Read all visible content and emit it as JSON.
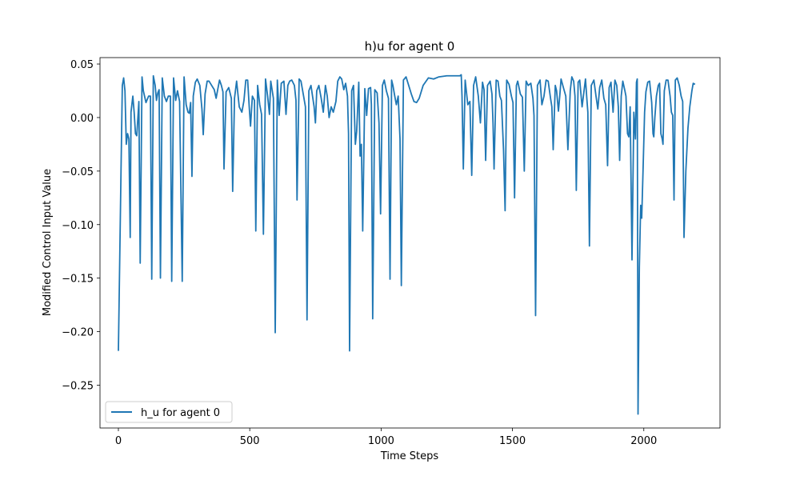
{
  "chart_data": {
    "type": "line",
    "title": "h)u for agent 0",
    "xlabel": "Time Steps",
    "ylabel": "Modified Control Input Value",
    "xlim": [
      -70,
      2290
    ],
    "ylim": [
      -0.29,
      0.056
    ],
    "xticks": [
      0,
      500,
      1000,
      1500,
      2000
    ],
    "yticks": [
      0.05,
      0.0,
      -0.05,
      -0.1,
      -0.15,
      -0.2,
      -0.25
    ],
    "ytick_labels": [
      "0.05",
      "0.00",
      "−0.05",
      "−0.10",
      "−0.15",
      "−0.20",
      "−0.25"
    ],
    "xtick_labels": [
      "0",
      "500",
      "1000",
      "1500",
      "2000"
    ],
    "grid": false,
    "legend_position": "lower-left",
    "series": [
      {
        "name": "h_u for agent 0",
        "color": "#1f77b4",
        "points": [
          [
            0,
            -0.218
          ],
          [
            10,
            -0.05
          ],
          [
            15,
            0.03
          ],
          [
            20,
            0.037
          ],
          [
            25,
            0.025
          ],
          [
            30,
            -0.025
          ],
          [
            35,
            -0.015
          ],
          [
            40,
            -0.02
          ],
          [
            45,
            -0.112
          ],
          [
            48,
            0.005
          ],
          [
            55,
            0.02
          ],
          [
            60,
            0.005
          ],
          [
            65,
            -0.015
          ],
          [
            70,
            -0.017
          ],
          [
            78,
            0.015
          ],
          [
            83,
            -0.136
          ],
          [
            90,
            0.038
          ],
          [
            95,
            0.025
          ],
          [
            105,
            0.014
          ],
          [
            115,
            0.02
          ],
          [
            122,
            0.02
          ],
          [
            127,
            -0.151
          ],
          [
            133,
            0.039
          ],
          [
            140,
            0.03
          ],
          [
            145,
            0.016
          ],
          [
            150,
            0.023
          ],
          [
            155,
            0.026
          ],
          [
            160,
            -0.15
          ],
          [
            167,
            0.037
          ],
          [
            175,
            0.02
          ],
          [
            183,
            0.015
          ],
          [
            190,
            0.02
          ],
          [
            198,
            0.02
          ],
          [
            203,
            -0.153
          ],
          [
            210,
            0.037
          ],
          [
            218,
            0.016
          ],
          [
            225,
            0.025
          ],
          [
            233,
            0.015
          ],
          [
            243,
            -0.153
          ],
          [
            250,
            0.038
          ],
          [
            258,
            0.012
          ],
          [
            265,
            0.005
          ],
          [
            270,
            0.004
          ],
          [
            275,
            0.014
          ],
          [
            280,
            -0.055
          ],
          [
            285,
            0.02
          ],
          [
            293,
            0.033
          ],
          [
            300,
            0.036
          ],
          [
            310,
            0.03
          ],
          [
            318,
            0.008
          ],
          [
            323,
            -0.016
          ],
          [
            330,
            0.022
          ],
          [
            338,
            0.034
          ],
          [
            345,
            0.034
          ],
          [
            355,
            0.03
          ],
          [
            365,
            0.026
          ],
          [
            372,
            0.018
          ],
          [
            378,
            0.026
          ],
          [
            385,
            0.035
          ],
          [
            392,
            0.03
          ],
          [
            398,
            0.024
          ],
          [
            402,
            -0.048
          ],
          [
            410,
            0.024
          ],
          [
            420,
            0.028
          ],
          [
            430,
            0.018
          ],
          [
            435,
            -0.069
          ],
          [
            442,
            0.018
          ],
          [
            450,
            0.034
          ],
          [
            460,
            0.01
          ],
          [
            470,
            0.005
          ],
          [
            478,
            0.016
          ],
          [
            485,
            0.035
          ],
          [
            492,
            0.035
          ],
          [
            498,
            0.01
          ],
          [
            503,
            -0.008
          ],
          [
            510,
            0.02
          ],
          [
            518,
            0.016
          ],
          [
            523,
            -0.106
          ],
          [
            530,
            0.03
          ],
          [
            538,
            0.012
          ],
          [
            545,
            0.003
          ],
          [
            552,
            -0.109
          ],
          [
            560,
            0.036
          ],
          [
            568,
            0.02
          ],
          [
            575,
            0.003
          ],
          [
            580,
            0.034
          ],
          [
            590,
            0.018
          ],
          [
            597,
            -0.201
          ],
          [
            605,
            0.035
          ],
          [
            612,
            0.002
          ],
          [
            620,
            0.032
          ],
          [
            630,
            0.034
          ],
          [
            638,
            0.003
          ],
          [
            645,
            0.03
          ],
          [
            652,
            0.034
          ],
          [
            660,
            0.035
          ],
          [
            670,
            0.03
          ],
          [
            676,
            0.016
          ],
          [
            680,
            -0.077
          ],
          [
            688,
            0.036
          ],
          [
            695,
            0.034
          ],
          [
            705,
            0.02
          ],
          [
            712,
            0.01
          ],
          [
            718,
            -0.189
          ],
          [
            725,
            0.025
          ],
          [
            733,
            0.03
          ],
          [
            745,
            0.01
          ],
          [
            750,
            -0.005
          ],
          [
            755,
            0.025
          ],
          [
            763,
            0.03
          ],
          [
            772,
            0.018
          ],
          [
            780,
            0.005
          ],
          [
            788,
            0.03
          ],
          [
            795,
            0.02
          ],
          [
            802,
            0.0
          ],
          [
            810,
            0.01
          ],
          [
            818,
            0.005
          ],
          [
            828,
            0.015
          ],
          [
            835,
            0.034
          ],
          [
            843,
            0.038
          ],
          [
            850,
            0.036
          ],
          [
            858,
            0.026
          ],
          [
            865,
            0.032
          ],
          [
            872,
            0.02
          ],
          [
            876,
            -0.015
          ],
          [
            880,
            -0.218
          ],
          [
            888,
            0.025
          ],
          [
            895,
            0.03
          ],
          [
            902,
            -0.025
          ],
          [
            907,
            -0.013
          ],
          [
            915,
            0.033
          ],
          [
            920,
            -0.036
          ],
          [
            925,
            -0.025
          ],
          [
            930,
            -0.106
          ],
          [
            938,
            0.027
          ],
          [
            945,
            0.002
          ],
          [
            952,
            0.027
          ],
          [
            960,
            0.028
          ],
          [
            963,
            0.012
          ],
          [
            968,
            -0.188
          ],
          [
            976,
            0.026
          ],
          [
            985,
            0.023
          ],
          [
            992,
            -0.005
          ],
          [
            998,
            -0.09
          ],
          [
            1005,
            0.03
          ],
          [
            1012,
            0.035
          ],
          [
            1020,
            0.025
          ],
          [
            1028,
            0.018
          ],
          [
            1034,
            -0.151
          ],
          [
            1040,
            0.035
          ],
          [
            1045,
            0.03
          ],
          [
            1052,
            0.02
          ],
          [
            1058,
            0.012
          ],
          [
            1065,
            0.02
          ],
          [
            1072,
            -0.02
          ],
          [
            1077,
            -0.157
          ],
          [
            1085,
            0.035
          ],
          [
            1095,
            0.038
          ],
          [
            1105,
            0.03
          ],
          [
            1115,
            0.022
          ],
          [
            1125,
            0.015
          ],
          [
            1135,
            0.014
          ],
          [
            1145,
            0.018
          ],
          [
            1160,
            0.03
          ],
          [
            1180,
            0.037
          ],
          [
            1200,
            0.036
          ],
          [
            1220,
            0.038
          ],
          [
            1250,
            0.039
          ],
          [
            1280,
            0.039
          ],
          [
            1300,
            0.039
          ],
          [
            1305,
            0.04
          ],
          [
            1308,
            0.02
          ],
          [
            1313,
            -0.048
          ],
          [
            1320,
            0.035
          ],
          [
            1330,
            0.012
          ],
          [
            1338,
            0.015
          ],
          [
            1345,
            -0.054
          ],
          [
            1352,
            0.03
          ],
          [
            1360,
            0.038
          ],
          [
            1370,
            0.02
          ],
          [
            1378,
            -0.005
          ],
          [
            1386,
            0.033
          ],
          [
            1392,
            0.026
          ],
          [
            1398,
            -0.04
          ],
          [
            1405,
            0.03
          ],
          [
            1415,
            0.034
          ],
          [
            1422,
            0.022
          ],
          [
            1426,
            -0.005
          ],
          [
            1430,
            -0.048
          ],
          [
            1438,
            0.035
          ],
          [
            1445,
            0.034
          ],
          [
            1452,
            0.02
          ],
          [
            1458,
            0.016
          ],
          [
            1466,
            -0.03
          ],
          [
            1472,
            -0.087
          ],
          [
            1478,
            0.035
          ],
          [
            1487,
            0.031
          ],
          [
            1496,
            0.02
          ],
          [
            1502,
            0.014
          ],
          [
            1508,
            -0.075
          ],
          [
            1515,
            0.03
          ],
          [
            1520,
            0.034
          ],
          [
            1530,
            0.022
          ],
          [
            1538,
            0.019
          ],
          [
            1545,
            -0.05
          ],
          [
            1552,
            0.034
          ],
          [
            1560,
            0.03
          ],
          [
            1570,
            0.032
          ],
          [
            1578,
            0.018
          ],
          [
            1582,
            0.002
          ],
          [
            1588,
            -0.185
          ],
          [
            1595,
            0.03
          ],
          [
            1605,
            0.035
          ],
          [
            1612,
            0.012
          ],
          [
            1620,
            0.02
          ],
          [
            1628,
            0.035
          ],
          [
            1636,
            0.034
          ],
          [
            1645,
            0.018
          ],
          [
            1650,
            0.01
          ],
          [
            1655,
            -0.03
          ],
          [
            1663,
            0.03
          ],
          [
            1668,
            0.025
          ],
          [
            1675,
            0.006
          ],
          [
            1680,
            0.02
          ],
          [
            1685,
            0.036
          ],
          [
            1695,
            0.027
          ],
          [
            1703,
            0.02
          ],
          [
            1711,
            -0.03
          ],
          [
            1720,
            0.025
          ],
          [
            1726,
            0.038
          ],
          [
            1733,
            0.034
          ],
          [
            1738,
            0.02
          ],
          [
            1743,
            -0.068
          ],
          [
            1750,
            0.033
          ],
          [
            1756,
            0.035
          ],
          [
            1765,
            0.01
          ],
          [
            1770,
            0.02
          ],
          [
            1778,
            0.036
          ],
          [
            1783,
            0.018
          ],
          [
            1787,
            0.005
          ],
          [
            1793,
            -0.12
          ],
          [
            1800,
            0.03
          ],
          [
            1810,
            0.035
          ],
          [
            1818,
            0.02
          ],
          [
            1825,
            0.008
          ],
          [
            1832,
            0.028
          ],
          [
            1840,
            0.035
          ],
          [
            1848,
            0.018
          ],
          [
            1855,
            0.012
          ],
          [
            1862,
            -0.045
          ],
          [
            1868,
            0.028
          ],
          [
            1875,
            0.033
          ],
          [
            1883,
            0.005
          ],
          [
            1890,
            0.035
          ],
          [
            1897,
            0.03
          ],
          [
            1903,
            0.01
          ],
          [
            1908,
            -0.04
          ],
          [
            1914,
            0.02
          ],
          [
            1920,
            0.034
          ],
          [
            1928,
            0.025
          ],
          [
            1932,
            0.02
          ],
          [
            1938,
            -0.015
          ],
          [
            1943,
            -0.018
          ],
          [
            1948,
            0.01
          ],
          [
            1955,
            -0.133
          ],
          [
            1962,
            0.005
          ],
          [
            1968,
            -0.02
          ],
          [
            1972,
            0.033
          ],
          [
            1975,
            0.036
          ],
          [
            1978,
            -0.277
          ],
          [
            1983,
            -0.14
          ],
          [
            1988,
            -0.082
          ],
          [
            1992,
            -0.094
          ],
          [
            1997,
            -0.05
          ],
          [
            2003,
            0.005
          ],
          [
            2008,
            0.024
          ],
          [
            2015,
            0.033
          ],
          [
            2022,
            0.034
          ],
          [
            2030,
            0.014
          ],
          [
            2035,
            -0.015
          ],
          [
            2038,
            -0.018
          ],
          [
            2042,
            0.0
          ],
          [
            2048,
            0.02
          ],
          [
            2055,
            0.03
          ],
          [
            2060,
            0.032
          ],
          [
            2065,
            -0.015
          ],
          [
            2070,
            -0.02
          ],
          [
            2073,
            -0.025
          ],
          [
            2078,
            0.025
          ],
          [
            2085,
            0.035
          ],
          [
            2092,
            0.035
          ],
          [
            2100,
            0.02
          ],
          [
            2105,
            0.005
          ],
          [
            2110,
            0.002
          ],
          [
            2115,
            -0.077
          ],
          [
            2120,
            0.035
          ],
          [
            2127,
            0.037
          ],
          [
            2135,
            0.03
          ],
          [
            2142,
            0.02
          ],
          [
            2148,
            0.015
          ],
          [
            2153,
            -0.112
          ],
          [
            2160,
            -0.05
          ],
          [
            2168,
            -0.01
          ],
          [
            2175,
            0.01
          ],
          [
            2183,
            0.025
          ],
          [
            2188,
            0.032
          ],
          [
            2195,
            0.031
          ]
        ]
      }
    ]
  }
}
